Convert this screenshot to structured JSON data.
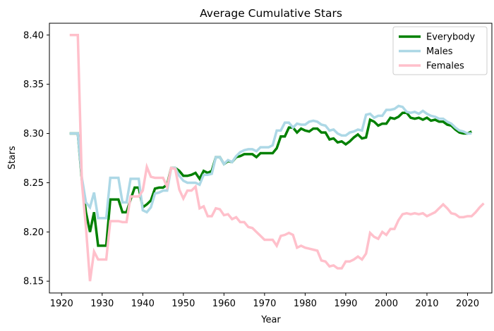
{
  "chart_data": {
    "type": "line",
    "title": "Average Cumulative Stars",
    "xlabel": "Year",
    "ylabel": "Stars",
    "xlim": [
      1917,
      2026
    ],
    "ylim": [
      8.138,
      8.412
    ],
    "x_ticks": [
      1920,
      1930,
      1940,
      1950,
      1960,
      1970,
      1980,
      1990,
      2000,
      2010,
      2020
    ],
    "y_ticks": [
      8.15,
      8.2,
      8.25,
      8.3,
      8.35,
      8.4
    ],
    "y_tick_labels": [
      "8.15",
      "8.20",
      "8.25",
      "8.30",
      "8.35",
      "8.40"
    ],
    "grid": false,
    "legend": "upper right",
    "series": [
      {
        "name": "Everybody",
        "color": "#008000",
        "points": [
          [
            1922,
            8.3
          ],
          [
            1923,
            8.3
          ],
          [
            1924,
            8.3
          ],
          [
            1925,
            8.253
          ],
          [
            1926,
            8.22
          ],
          [
            1927,
            8.2
          ],
          [
            1928,
            8.22
          ],
          [
            1929,
            8.186
          ],
          [
            1930,
            8.186
          ],
          [
            1931,
            8.186
          ],
          [
            1932,
            8.233
          ],
          [
            1933,
            8.233
          ],
          [
            1934,
            8.233
          ],
          [
            1935,
            8.22
          ],
          [
            1936,
            8.22
          ],
          [
            1937,
            8.233
          ],
          [
            1938,
            8.245
          ],
          [
            1939,
            8.245
          ],
          [
            1940,
            8.225
          ],
          [
            1941,
            8.228
          ],
          [
            1942,
            8.232
          ],
          [
            1943,
            8.244
          ],
          [
            1944,
            8.245
          ],
          [
            1945,
            8.245
          ],
          [
            1946,
            8.248
          ],
          [
            1947,
            8.265
          ],
          [
            1948,
            8.265
          ],
          [
            1949,
            8.262
          ],
          [
            1950,
            8.257
          ],
          [
            1951,
            8.257
          ],
          [
            1952,
            8.258
          ],
          [
            1953,
            8.26
          ],
          [
            1954,
            8.254
          ],
          [
            1955,
            8.262
          ],
          [
            1956,
            8.26
          ],
          [
            1957,
            8.262
          ],
          [
            1958,
            8.276
          ],
          [
            1959,
            8.276
          ],
          [
            1960,
            8.269
          ],
          [
            1961,
            8.272
          ],
          [
            1962,
            8.271
          ],
          [
            1963,
            8.276
          ],
          [
            1964,
            8.277
          ],
          [
            1965,
            8.279
          ],
          [
            1966,
            8.279
          ],
          [
            1967,
            8.279
          ],
          [
            1968,
            8.276
          ],
          [
            1969,
            8.28
          ],
          [
            1970,
            8.28
          ],
          [
            1971,
            8.28
          ],
          [
            1972,
            8.28
          ],
          [
            1973,
            8.285
          ],
          [
            1974,
            8.297
          ],
          [
            1975,
            8.297
          ],
          [
            1976,
            8.306
          ],
          [
            1977,
            8.306
          ],
          [
            1978,
            8.301
          ],
          [
            1979,
            8.305
          ],
          [
            1980,
            8.303
          ],
          [
            1981,
            8.302
          ],
          [
            1982,
            8.305
          ],
          [
            1983,
            8.305
          ],
          [
            1984,
            8.301
          ],
          [
            1985,
            8.301
          ],
          [
            1986,
            8.294
          ],
          [
            1987,
            8.295
          ],
          [
            1988,
            8.291
          ],
          [
            1989,
            8.292
          ],
          [
            1990,
            8.289
          ],
          [
            1991,
            8.292
          ],
          [
            1992,
            8.296
          ],
          [
            1993,
            8.299
          ],
          [
            1994,
            8.295
          ],
          [
            1995,
            8.296
          ],
          [
            1996,
            8.314
          ],
          [
            1997,
            8.312
          ],
          [
            1998,
            8.308
          ],
          [
            1999,
            8.31
          ],
          [
            2000,
            8.31
          ],
          [
            2001,
            8.316
          ],
          [
            2002,
            8.315
          ],
          [
            2003,
            8.317
          ],
          [
            2004,
            8.321
          ],
          [
            2005,
            8.321
          ],
          [
            2006,
            8.316
          ],
          [
            2007,
            8.315
          ],
          [
            2008,
            8.316
          ],
          [
            2009,
            8.314
          ],
          [
            2010,
            8.316
          ],
          [
            2011,
            8.313
          ],
          [
            2012,
            8.314
          ],
          [
            2013,
            8.312
          ],
          [
            2014,
            8.312
          ],
          [
            2015,
            8.309
          ],
          [
            2016,
            8.308
          ],
          [
            2017,
            8.304
          ],
          [
            2018,
            8.301
          ],
          [
            2019,
            8.3
          ],
          [
            2020,
            8.3
          ],
          [
            2021,
            8.302
          ]
        ]
      },
      {
        "name": "Males",
        "color": "#add8e6",
        "points": [
          [
            1922,
            8.3
          ],
          [
            1923,
            8.3
          ],
          [
            1924,
            8.3
          ],
          [
            1925,
            8.255
          ],
          [
            1926,
            8.23
          ],
          [
            1927,
            8.225
          ],
          [
            1928,
            8.24
          ],
          [
            1929,
            8.214
          ],
          [
            1930,
            8.214
          ],
          [
            1931,
            8.214
          ],
          [
            1932,
            8.255
          ],
          [
            1933,
            8.255
          ],
          [
            1934,
            8.255
          ],
          [
            1935,
            8.23
          ],
          [
            1936,
            8.23
          ],
          [
            1937,
            8.254
          ],
          [
            1938,
            8.254
          ],
          [
            1939,
            8.254
          ],
          [
            1940,
            8.222
          ],
          [
            1941,
            8.22
          ],
          [
            1942,
            8.225
          ],
          [
            1943,
            8.239
          ],
          [
            1944,
            8.24
          ],
          [
            1945,
            8.242
          ],
          [
            1946,
            8.242
          ],
          [
            1947,
            8.265
          ],
          [
            1948,
            8.265
          ],
          [
            1949,
            8.257
          ],
          [
            1950,
            8.252
          ],
          [
            1951,
            8.25
          ],
          [
            1952,
            8.25
          ],
          [
            1953,
            8.25
          ],
          [
            1954,
            8.248
          ],
          [
            1955,
            8.258
          ],
          [
            1956,
            8.258
          ],
          [
            1957,
            8.259
          ],
          [
            1958,
            8.276
          ],
          [
            1959,
            8.276
          ],
          [
            1960,
            8.269
          ],
          [
            1961,
            8.273
          ],
          [
            1962,
            8.271
          ],
          [
            1963,
            8.277
          ],
          [
            1964,
            8.281
          ],
          [
            1965,
            8.283
          ],
          [
            1966,
            8.284
          ],
          [
            1967,
            8.284
          ],
          [
            1968,
            8.282
          ],
          [
            1969,
            8.286
          ],
          [
            1970,
            8.286
          ],
          [
            1971,
            8.286
          ],
          [
            1972,
            8.288
          ],
          [
            1973,
            8.303
          ],
          [
            1974,
            8.303
          ],
          [
            1975,
            8.311
          ],
          [
            1976,
            8.311
          ],
          [
            1977,
            8.306
          ],
          [
            1978,
            8.31
          ],
          [
            1979,
            8.309
          ],
          [
            1980,
            8.309
          ],
          [
            1981,
            8.312
          ],
          [
            1982,
            8.313
          ],
          [
            1983,
            8.312
          ],
          [
            1984,
            8.309
          ],
          [
            1985,
            8.308
          ],
          [
            1986,
            8.303
          ],
          [
            1987,
            8.304
          ],
          [
            1988,
            8.3
          ],
          [
            1989,
            8.298
          ],
          [
            1990,
            8.298
          ],
          [
            1991,
            8.301
          ],
          [
            1992,
            8.302
          ],
          [
            1993,
            8.304
          ],
          [
            1994,
            8.303
          ],
          [
            1995,
            8.319
          ],
          [
            1996,
            8.32
          ],
          [
            1997,
            8.316
          ],
          [
            1998,
            8.318
          ],
          [
            1999,
            8.318
          ],
          [
            2000,
            8.324
          ],
          [
            2001,
            8.324
          ],
          [
            2002,
            8.325
          ],
          [
            2003,
            8.328
          ],
          [
            2004,
            8.327
          ],
          [
            2005,
            8.322
          ],
          [
            2006,
            8.321
          ],
          [
            2007,
            8.322
          ],
          [
            2008,
            8.32
          ],
          [
            2009,
            8.323
          ],
          [
            2010,
            8.32
          ],
          [
            2011,
            8.318
          ],
          [
            2012,
            8.317
          ],
          [
            2013,
            8.315
          ],
          [
            2014,
            8.315
          ],
          [
            2015,
            8.312
          ],
          [
            2016,
            8.31
          ],
          [
            2017,
            8.306
          ],
          [
            2018,
            8.303
          ],
          [
            2019,
            8.302
          ],
          [
            2020,
            8.3
          ],
          [
            2021,
            8.3
          ]
        ]
      },
      {
        "name": "Females",
        "color": "#ffc0cb",
        "points": [
          [
            1922,
            8.4
          ],
          [
            1923,
            8.4
          ],
          [
            1924,
            8.4
          ],
          [
            1925,
            8.25
          ],
          [
            1926,
            8.205
          ],
          [
            1927,
            8.15
          ],
          [
            1928,
            8.18
          ],
          [
            1929,
            8.172
          ],
          [
            1930,
            8.172
          ],
          [
            1931,
            8.172
          ],
          [
            1932,
            8.211
          ],
          [
            1933,
            8.211
          ],
          [
            1934,
            8.211
          ],
          [
            1935,
            8.21
          ],
          [
            1936,
            8.21
          ],
          [
            1937,
            8.236
          ],
          [
            1938,
            8.236
          ],
          [
            1939,
            8.236
          ],
          [
            1940,
            8.242
          ],
          [
            1941,
            8.266
          ],
          [
            1942,
            8.256
          ],
          [
            1943,
            8.255
          ],
          [
            1944,
            8.255
          ],
          [
            1945,
            8.255
          ],
          [
            1946,
            8.246
          ],
          [
            1947,
            8.265
          ],
          [
            1948,
            8.264
          ],
          [
            1949,
            8.243
          ],
          [
            1950,
            8.234
          ],
          [
            1951,
            8.242
          ],
          [
            1952,
            8.242
          ],
          [
            1953,
            8.246
          ],
          [
            1954,
            8.224
          ],
          [
            1955,
            8.226
          ],
          [
            1956,
            8.216
          ],
          [
            1957,
            8.216
          ],
          [
            1958,
            8.224
          ],
          [
            1959,
            8.223
          ],
          [
            1960,
            8.217
          ],
          [
            1961,
            8.218
          ],
          [
            1962,
            8.213
          ],
          [
            1963,
            8.215
          ],
          [
            1964,
            8.21
          ],
          [
            1965,
            8.21
          ],
          [
            1966,
            8.205
          ],
          [
            1967,
            8.204
          ],
          [
            1968,
            8.2
          ],
          [
            1969,
            8.196
          ],
          [
            1970,
            8.192
          ],
          [
            1971,
            8.192
          ],
          [
            1972,
            8.192
          ],
          [
            1973,
            8.186
          ],
          [
            1974,
            8.196
          ],
          [
            1975,
            8.197
          ],
          [
            1976,
            8.199
          ],
          [
            1977,
            8.197
          ],
          [
            1978,
            8.184
          ],
          [
            1979,
            8.186
          ],
          [
            1980,
            8.184
          ],
          [
            1981,
            8.183
          ],
          [
            1982,
            8.182
          ],
          [
            1983,
            8.181
          ],
          [
            1984,
            8.171
          ],
          [
            1985,
            8.17
          ],
          [
            1986,
            8.165
          ],
          [
            1987,
            8.166
          ],
          [
            1988,
            8.163
          ],
          [
            1989,
            8.163
          ],
          [
            1990,
            8.17
          ],
          [
            1991,
            8.17
          ],
          [
            1992,
            8.172
          ],
          [
            1993,
            8.175
          ],
          [
            1994,
            8.172
          ],
          [
            1995,
            8.178
          ],
          [
            1996,
            8.199
          ],
          [
            1997,
            8.195
          ],
          [
            1998,
            8.193
          ],
          [
            1999,
            8.2
          ],
          [
            2000,
            8.197
          ],
          [
            2001,
            8.203
          ],
          [
            2002,
            8.203
          ],
          [
            2003,
            8.212
          ],
          [
            2004,
            8.218
          ],
          [
            2005,
            8.219
          ],
          [
            2006,
            8.218
          ],
          [
            2007,
            8.219
          ],
          [
            2008,
            8.218
          ],
          [
            2009,
            8.219
          ],
          [
            2010,
            8.216
          ],
          [
            2011,
            8.218
          ],
          [
            2012,
            8.22
          ],
          [
            2013,
            8.224
          ],
          [
            2014,
            8.228
          ],
          [
            2015,
            8.224
          ],
          [
            2016,
            8.219
          ],
          [
            2017,
            8.218
          ],
          [
            2018,
            8.215
          ],
          [
            2019,
            8.215
          ],
          [
            2020,
            8.216
          ],
          [
            2021,
            8.216
          ],
          [
            2022,
            8.22
          ],
          [
            2023,
            8.225
          ],
          [
            2024,
            8.229
          ]
        ]
      }
    ]
  }
}
